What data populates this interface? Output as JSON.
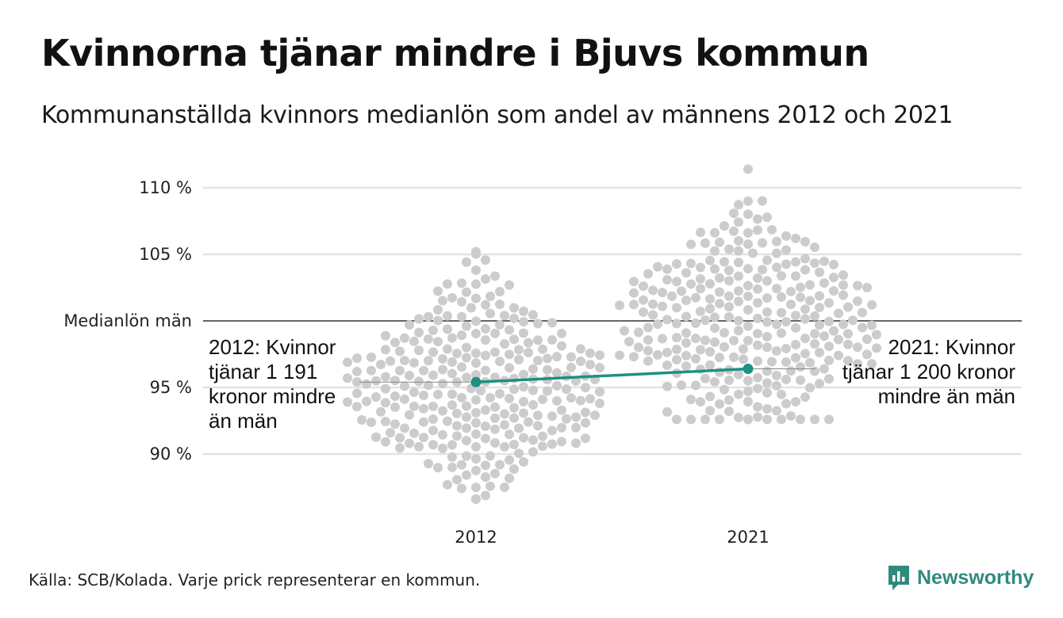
{
  "title": "Kvinnorna tjänar mindre i Bjuvs kommun",
  "subtitle": "Kommunanställda kvinnors medianlön som andel av männens 2012 och 2021",
  "source": "Källa: SCB/Kolada. Varje prick representerar en kommun.",
  "brand": {
    "name": "Newsworthy",
    "color": "#2f8a7e"
  },
  "colors": {
    "dots": "#cccccc",
    "highlight": "#1e9080",
    "grid": "#e3e3e3",
    "reference": "#333333"
  },
  "chart_data": {
    "type": "scatter",
    "subtype": "beeswarm",
    "categories": [
      "2012",
      "2021"
    ],
    "ylim": [
      86,
      112
    ],
    "yticks": [
      {
        "value": 90,
        "label": "90 %"
      },
      {
        "value": 95,
        "label": "95 %"
      },
      {
        "value": 100,
        "label": "Medianlön män"
      },
      {
        "value": 105,
        "label": "105 %"
      },
      {
        "value": 110,
        "label": "110 %"
      }
    ],
    "reference_line": {
      "value": 100,
      "label": "Medianlön män"
    },
    "swarm_ranges": [
      {
        "category": "2012",
        "min": 86.6,
        "max": 105.2,
        "median": 95.6
      },
      {
        "category": "2021",
        "min": 92.6,
        "max": 111.4,
        "median": 100.3
      }
    ],
    "highlight": {
      "name": "Bjuvs kommun",
      "values": [
        {
          "category": "2012",
          "value": 95.4
        },
        {
          "category": "2021",
          "value": 96.4
        }
      ]
    },
    "annotations": [
      {
        "category": "2012",
        "lines": [
          "2012: Kvinnor",
          "tjänar 1 191",
          "kronor mindre",
          "än män"
        ]
      },
      {
        "category": "2021",
        "lines": [
          "2021: Kvinnor",
          "tjänar 1 200 kronor",
          "mindre än män"
        ]
      }
    ]
  }
}
